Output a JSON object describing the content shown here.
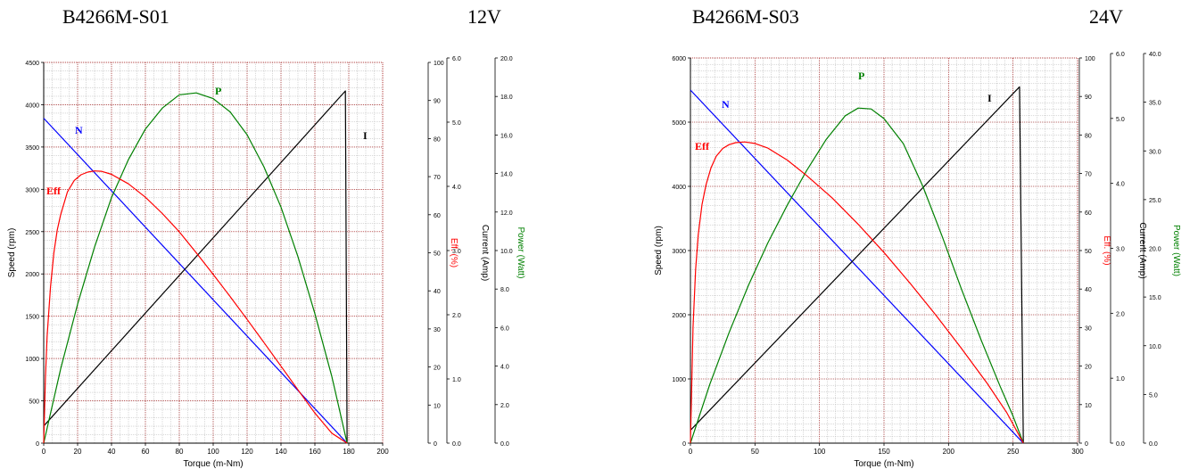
{
  "headers": {
    "left_model": "B4266M-S01",
    "left_voltage": "12V",
    "right_model": "B4266M-S03",
    "right_voltage": "24V"
  },
  "colors": {
    "speed": "#0000ff",
    "efficiency": "#ff0000",
    "power": "#008000",
    "current": "#000000",
    "grid_major": "#990000",
    "grid_minor": "#b0b0b0"
  },
  "chart_data": [
    {
      "type": "line",
      "title": "B4266M-S01 12V",
      "xlabel": "Torque (m-Nm)",
      "xlim": [
        0,
        200
      ],
      "x_ticks": [
        0,
        20,
        40,
        60,
        80,
        100,
        120,
        140,
        160,
        180,
        200
      ],
      "axes": {
        "speed": {
          "label": "Speed (rpm)",
          "lim": [
            0,
            4500
          ],
          "ticks": [
            0,
            500,
            1000,
            1500,
            2000,
            2500,
            3000,
            3500,
            4000,
            4500
          ]
        },
        "efficiency": {
          "label": "Eff. (%)",
          "lim": [
            0,
            100
          ],
          "ticks": [
            0,
            10,
            20,
            30,
            40,
            50,
            60,
            70,
            80,
            90,
            100
          ]
        },
        "current": {
          "label": "Current (Amp)",
          "lim": [
            0,
            6
          ],
          "ticks": [
            "0.0",
            "1.0",
            "2.0",
            "3.0",
            "4.0",
            "5.0",
            "6.0"
          ]
        },
        "power": {
          "label": "Power (Watt)",
          "lim": [
            0,
            20
          ],
          "ticks": [
            "0.0",
            "2.0",
            "4.0",
            "6.0",
            "8.0",
            "10.0",
            "12.0",
            "14.0",
            "16.0",
            "18.0",
            "20.0"
          ]
        }
      },
      "series": [
        {
          "name": "N",
          "axis": "speed",
          "x": [
            0,
            179
          ],
          "y": [
            3840,
            0
          ]
        },
        {
          "name": "I",
          "axis": "current",
          "x": [
            0,
            178,
            179
          ],
          "y": [
            0.27,
            5.55,
            0
          ]
        },
        {
          "name": "P",
          "axis": "power",
          "x": [
            0,
            10,
            20,
            30,
            40,
            50,
            60,
            70,
            80,
            90,
            100,
            110,
            120,
            130,
            140,
            150,
            160,
            170,
            179
          ],
          "y": [
            0,
            3.9,
            7.3,
            10.3,
            12.9,
            14.9,
            16.5,
            17.6,
            18.3,
            18.4,
            18.1,
            17.4,
            16.2,
            14.5,
            12.4,
            9.8,
            6.8,
            3.5,
            0
          ]
        },
        {
          "name": "Eff",
          "axis": "efficiency",
          "x": [
            0,
            1,
            2,
            4,
            6,
            8,
            10,
            14,
            18,
            22,
            26,
            30,
            34,
            40,
            50,
            60,
            70,
            80,
            90,
            100,
            110,
            120,
            130,
            140,
            150,
            160,
            170,
            179
          ],
          "y": [
            0,
            17,
            28,
            41,
            50,
            56,
            60,
            66,
            69,
            70.5,
            71.2,
            71.5,
            71.4,
            70.6,
            68.1,
            64.6,
            60.3,
            55.5,
            50,
            44.3,
            38.5,
            32.5,
            26.4,
            20.2,
            14,
            7.9,
            2.6,
            0
          ]
        }
      ],
      "annotations": [
        "N",
        "Eff",
        "P",
        "I"
      ]
    },
    {
      "type": "line",
      "title": "B4266M-S03 24V",
      "xlabel": "Torque (m-Nm)",
      "xlim": [
        0,
        300
      ],
      "x_ticks": [
        0,
        50,
        100,
        150,
        200,
        250,
        300
      ],
      "axes": {
        "speed": {
          "label": "Speed (rpm)",
          "lim": [
            0,
            6000
          ],
          "ticks": [
            0,
            1000,
            2000,
            3000,
            4000,
            5000,
            6000
          ]
        },
        "efficiency": {
          "label": "Eff. (%)",
          "lim": [
            0,
            100
          ],
          "ticks": [
            0,
            10,
            20,
            30,
            40,
            50,
            60,
            70,
            80,
            90,
            100
          ]
        },
        "current": {
          "label": "Current (Amp)",
          "lim": [
            0,
            6
          ],
          "ticks": [
            "0.0",
            "1.0",
            "2.0",
            "3.0",
            "4.0",
            "5.0",
            "6.0"
          ]
        },
        "power": {
          "label": "Power (Watt)",
          "lim": [
            0,
            40
          ],
          "ticks": [
            "0.0",
            "5.0",
            "10.0",
            "15.0",
            "20.0",
            "25.0",
            "30.0",
            "35.0",
            "40.0"
          ]
        }
      },
      "series": [
        {
          "name": "N",
          "axis": "speed",
          "x": [
            0,
            258
          ],
          "y": [
            5500,
            0
          ]
        },
        {
          "name": "I",
          "axis": "current",
          "x": [
            0,
            255,
            258
          ],
          "y": [
            0.2,
            5.55,
            0
          ]
        },
        {
          "name": "P",
          "axis": "power",
          "x": [
            0,
            15,
            30,
            45,
            60,
            75,
            90,
            105,
            120,
            130,
            140,
            150,
            165,
            180,
            195,
            210,
            225,
            240,
            250,
            258
          ],
          "y": [
            0,
            6.1,
            11.5,
            16.4,
            20.8,
            24.7,
            28.3,
            31.5,
            34,
            34.8,
            34.7,
            33.7,
            31.1,
            26.7,
            21.5,
            16,
            10.8,
            5.9,
            2.8,
            0
          ]
        },
        {
          "name": "Eff",
          "axis": "efficiency",
          "x": [
            0,
            2,
            4,
            6,
            9,
            12,
            16,
            20,
            25,
            30,
            35,
            42,
            50,
            60,
            75,
            90,
            110,
            130,
            150,
            170,
            190,
            210,
            230,
            245,
            258
          ],
          "y": [
            0,
            30,
            45,
            54,
            62,
            67,
            71.5,
            74.5,
            76.5,
            77.5,
            78,
            78.2,
            77.8,
            76.6,
            73.5,
            69.5,
            63.6,
            56.8,
            49.5,
            41.6,
            33.3,
            24.6,
            15.5,
            8,
            0
          ]
        }
      ],
      "annotations": [
        "N",
        "Eff",
        "P",
        "I"
      ]
    }
  ]
}
